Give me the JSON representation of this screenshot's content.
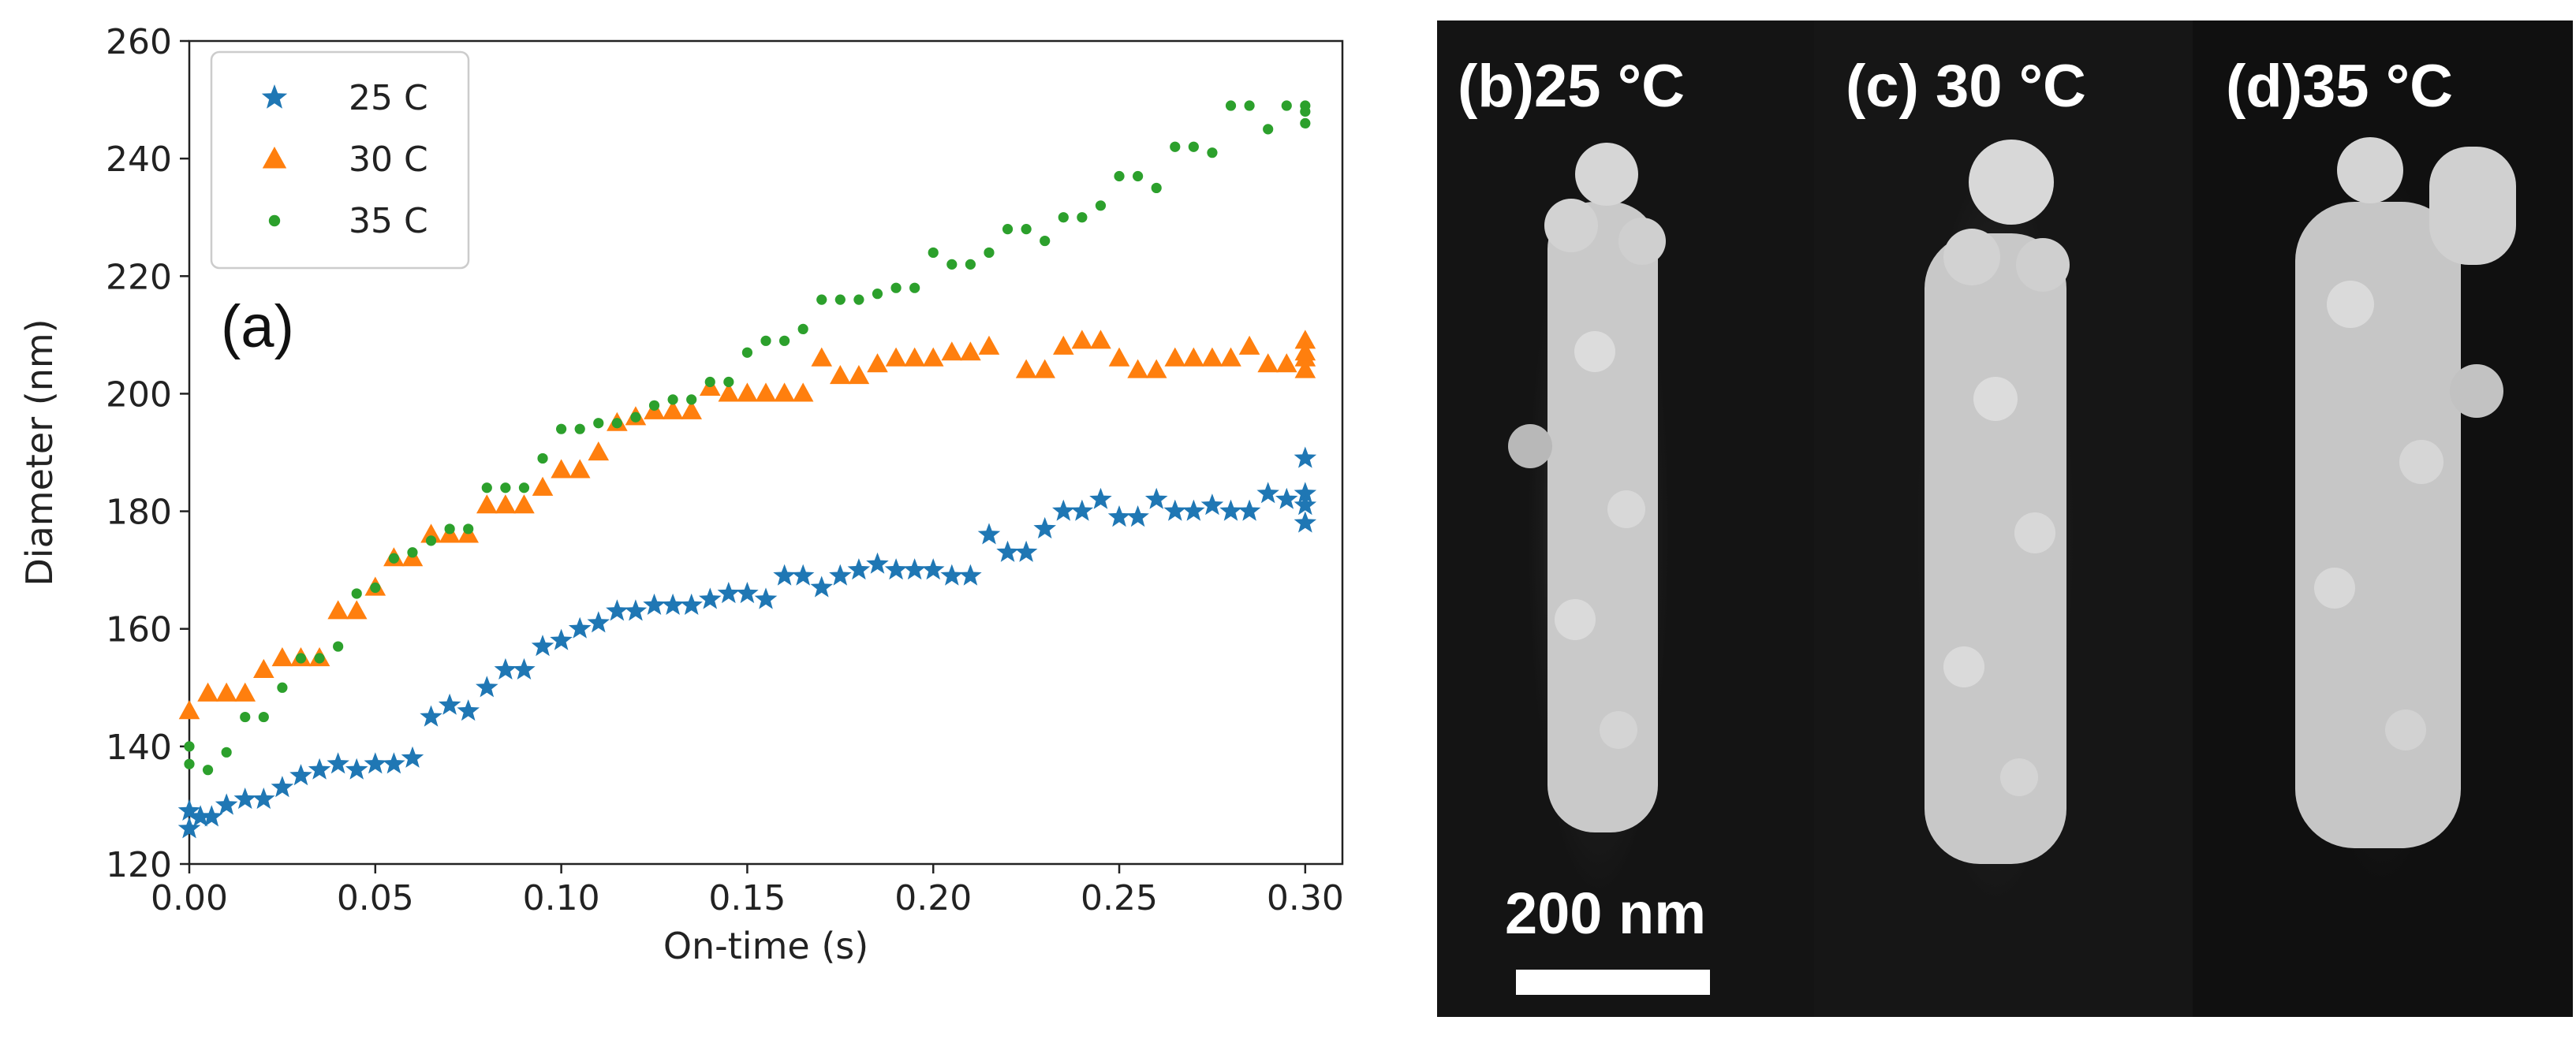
{
  "chart_data": {
    "type": "scatter",
    "panel_label": "(a)",
    "xlabel": "On-time (s)",
    "ylabel": "Diameter (nm)",
    "xlim": [
      0.0,
      0.31
    ],
    "ylim": [
      120,
      260
    ],
    "x_ticks": [
      "0.00",
      "0.05",
      "0.10",
      "0.15",
      "0.20",
      "0.25",
      "0.30"
    ],
    "y_ticks": [
      "120",
      "140",
      "160",
      "180",
      "200",
      "220",
      "240",
      "260"
    ],
    "legend_position": "top-left",
    "series": [
      {
        "name": "25 C",
        "marker": "star",
        "color": "#1f77b4",
        "points": [
          [
            0.0,
            126
          ],
          [
            0.0,
            129
          ],
          [
            0.003,
            128
          ],
          [
            0.006,
            128
          ],
          [
            0.01,
            130
          ],
          [
            0.015,
            131
          ],
          [
            0.02,
            131
          ],
          [
            0.025,
            133
          ],
          [
            0.03,
            135
          ],
          [
            0.035,
            136
          ],
          [
            0.04,
            137
          ],
          [
            0.045,
            136
          ],
          [
            0.05,
            137
          ],
          [
            0.055,
            137
          ],
          [
            0.06,
            138
          ],
          [
            0.065,
            145
          ],
          [
            0.07,
            147
          ],
          [
            0.075,
            146
          ],
          [
            0.08,
            150
          ],
          [
            0.085,
            153
          ],
          [
            0.09,
            153
          ],
          [
            0.095,
            157
          ],
          [
            0.1,
            158
          ],
          [
            0.105,
            160
          ],
          [
            0.11,
            161
          ],
          [
            0.115,
            163
          ],
          [
            0.12,
            163
          ],
          [
            0.125,
            164
          ],
          [
            0.13,
            164
          ],
          [
            0.135,
            164
          ],
          [
            0.14,
            165
          ],
          [
            0.145,
            166
          ],
          [
            0.15,
            166
          ],
          [
            0.155,
            165
          ],
          [
            0.16,
            169
          ],
          [
            0.165,
            169
          ],
          [
            0.17,
            167
          ],
          [
            0.175,
            169
          ],
          [
            0.18,
            170
          ],
          [
            0.185,
            171
          ],
          [
            0.19,
            170
          ],
          [
            0.195,
            170
          ],
          [
            0.2,
            170
          ],
          [
            0.205,
            169
          ],
          [
            0.21,
            169
          ],
          [
            0.215,
            176
          ],
          [
            0.22,
            173
          ],
          [
            0.225,
            173
          ],
          [
            0.23,
            177
          ],
          [
            0.235,
            180
          ],
          [
            0.24,
            180
          ],
          [
            0.245,
            182
          ],
          [
            0.25,
            179
          ],
          [
            0.255,
            179
          ],
          [
            0.26,
            182
          ],
          [
            0.265,
            180
          ],
          [
            0.27,
            180
          ],
          [
            0.275,
            181
          ],
          [
            0.28,
            180
          ],
          [
            0.285,
            180
          ],
          [
            0.29,
            183
          ],
          [
            0.295,
            182
          ],
          [
            0.3,
            189
          ],
          [
            0.3,
            183
          ],
          [
            0.3,
            181
          ],
          [
            0.3,
            178
          ]
        ]
      },
      {
        "name": "30 C",
        "marker": "triangle",
        "color": "#ff7f0e",
        "points": [
          [
            0.0,
            146
          ],
          [
            0.005,
            149
          ],
          [
            0.01,
            149
          ],
          [
            0.015,
            149
          ],
          [
            0.02,
            153
          ],
          [
            0.025,
            155
          ],
          [
            0.03,
            155
          ],
          [
            0.035,
            155
          ],
          [
            0.04,
            163
          ],
          [
            0.045,
            163
          ],
          [
            0.05,
            167
          ],
          [
            0.055,
            172
          ],
          [
            0.06,
            172
          ],
          [
            0.065,
            176
          ],
          [
            0.07,
            176
          ],
          [
            0.075,
            176
          ],
          [
            0.08,
            181
          ],
          [
            0.085,
            181
          ],
          [
            0.09,
            181
          ],
          [
            0.095,
            184
          ],
          [
            0.1,
            187
          ],
          [
            0.105,
            187
          ],
          [
            0.11,
            190
          ],
          [
            0.115,
            195
          ],
          [
            0.12,
            196
          ],
          [
            0.125,
            197
          ],
          [
            0.13,
            197
          ],
          [
            0.135,
            197
          ],
          [
            0.14,
            201
          ],
          [
            0.145,
            200
          ],
          [
            0.15,
            200
          ],
          [
            0.155,
            200
          ],
          [
            0.16,
            200
          ],
          [
            0.165,
            200
          ],
          [
            0.17,
            206
          ],
          [
            0.175,
            203
          ],
          [
            0.18,
            203
          ],
          [
            0.185,
            205
          ],
          [
            0.19,
            206
          ],
          [
            0.195,
            206
          ],
          [
            0.2,
            206
          ],
          [
            0.205,
            207
          ],
          [
            0.21,
            207
          ],
          [
            0.215,
            208
          ],
          [
            0.225,
            204
          ],
          [
            0.23,
            204
          ],
          [
            0.235,
            208
          ],
          [
            0.24,
            209
          ],
          [
            0.245,
            209
          ],
          [
            0.25,
            206
          ],
          [
            0.255,
            204
          ],
          [
            0.26,
            204
          ],
          [
            0.265,
            206
          ],
          [
            0.27,
            206
          ],
          [
            0.275,
            206
          ],
          [
            0.28,
            206
          ],
          [
            0.285,
            208
          ],
          [
            0.29,
            205
          ],
          [
            0.295,
            205
          ],
          [
            0.3,
            206
          ],
          [
            0.3,
            209
          ],
          [
            0.3,
            204
          ],
          [
            0.3,
            207
          ]
        ]
      },
      {
        "name": "35 C",
        "marker": "circle",
        "color": "#2ca02c",
        "points": [
          [
            0.0,
            140
          ],
          [
            0.0,
            137
          ],
          [
            0.005,
            136
          ],
          [
            0.01,
            139
          ],
          [
            0.015,
            145
          ],
          [
            0.02,
            145
          ],
          [
            0.025,
            150
          ],
          [
            0.03,
            155
          ],
          [
            0.035,
            155
          ],
          [
            0.04,
            157
          ],
          [
            0.045,
            166
          ],
          [
            0.05,
            167
          ],
          [
            0.055,
            172
          ],
          [
            0.06,
            173
          ],
          [
            0.065,
            175
          ],
          [
            0.07,
            177
          ],
          [
            0.075,
            177
          ],
          [
            0.08,
            184
          ],
          [
            0.085,
            184
          ],
          [
            0.09,
            184
          ],
          [
            0.095,
            189
          ],
          [
            0.1,
            194
          ],
          [
            0.105,
            194
          ],
          [
            0.11,
            195
          ],
          [
            0.115,
            195
          ],
          [
            0.12,
            196
          ],
          [
            0.125,
            198
          ],
          [
            0.13,
            199
          ],
          [
            0.135,
            199
          ],
          [
            0.14,
            202
          ],
          [
            0.145,
            202
          ],
          [
            0.15,
            207
          ],
          [
            0.155,
            209
          ],
          [
            0.16,
            209
          ],
          [
            0.165,
            211
          ],
          [
            0.17,
            216
          ],
          [
            0.175,
            216
          ],
          [
            0.18,
            216
          ],
          [
            0.185,
            217
          ],
          [
            0.19,
            218
          ],
          [
            0.195,
            218
          ],
          [
            0.2,
            224
          ],
          [
            0.205,
            222
          ],
          [
            0.21,
            222
          ],
          [
            0.215,
            224
          ],
          [
            0.22,
            228
          ],
          [
            0.225,
            228
          ],
          [
            0.23,
            226
          ],
          [
            0.235,
            230
          ],
          [
            0.24,
            230
          ],
          [
            0.245,
            232
          ],
          [
            0.25,
            237
          ],
          [
            0.255,
            237
          ],
          [
            0.26,
            235
          ],
          [
            0.265,
            242
          ],
          [
            0.27,
            242
          ],
          [
            0.275,
            241
          ],
          [
            0.28,
            249
          ],
          [
            0.285,
            249
          ],
          [
            0.29,
            245
          ],
          [
            0.295,
            249
          ],
          [
            0.3,
            248
          ],
          [
            0.3,
            246
          ],
          [
            0.3,
            249
          ]
        ]
      }
    ]
  },
  "sem_panels": [
    {
      "label": "(b)25 °C"
    },
    {
      "label": "(c) 30 °C"
    },
    {
      "label": "(d)35 °C"
    }
  ],
  "scale_bar": {
    "label": "200 nm"
  }
}
